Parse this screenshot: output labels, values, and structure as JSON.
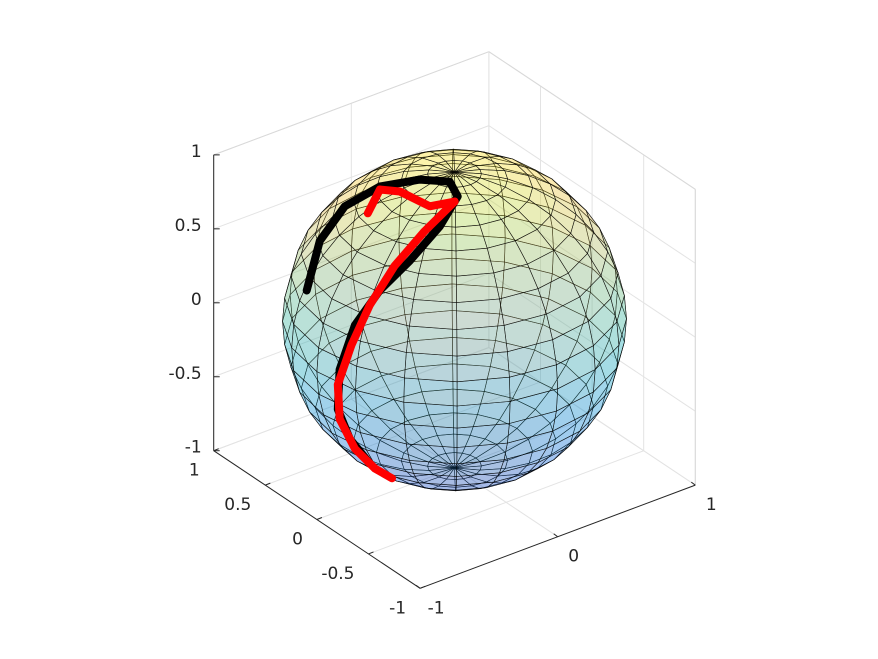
{
  "chart_data": {
    "type": "sphere3d",
    "xlim": [
      -1,
      1
    ],
    "ylim": [
      -1,
      1
    ],
    "zlim": [
      -1,
      1
    ],
    "xticks": [
      -1,
      0,
      1
    ],
    "yticks": [
      -1,
      -0.5,
      0,
      0.5,
      1
    ],
    "zticks": [
      -1,
      -0.5,
      0,
      0.5,
      1
    ],
    "grid": true,
    "series": [
      {
        "color": "#000000",
        "x": [
          -0.886,
          -0.702,
          -0.508,
          -0.341,
          -0.187,
          -0.079,
          -0.123,
          -0.332,
          -0.57,
          -0.754,
          -0.895,
          -0.977,
          -0.968,
          -0.892,
          -0.76
        ],
        "y": [
          0.251,
          0.369,
          0.386,
          0.268,
          0.087,
          -0.058,
          -0.195,
          -0.301,
          -0.326,
          -0.281,
          -0.228,
          -0.189,
          -0.16,
          -0.175,
          -0.193
        ],
        "z": [
          0.392,
          0.608,
          0.766,
          0.897,
          0.974,
          0.99,
          0.969,
          0.89,
          0.75,
          0.593,
          0.383,
          0.093,
          -0.191,
          -0.411,
          -0.615
        ]
      },
      {
        "color": "#ff0000",
        "x": [
          -0.523,
          -0.362,
          -0.325,
          -0.292,
          -0.161,
          -0.415,
          -0.64,
          -0.818,
          -0.932,
          -0.984,
          -0.95,
          -0.849,
          -0.717,
          -0.598
        ],
        "y": [
          0.143,
          0.24,
          0.097,
          -0.15,
          -0.217,
          -0.263,
          -0.273,
          -0.268,
          -0.245,
          -0.181,
          -0.154,
          -0.167,
          -0.185,
          -0.192
        ],
        "z": [
          0.837,
          0.897,
          0.937,
          0.94,
          0.958,
          0.867,
          0.716,
          0.509,
          0.27,
          -0.009,
          -0.266,
          -0.496,
          -0.668,
          -0.772
        ]
      }
    ]
  }
}
